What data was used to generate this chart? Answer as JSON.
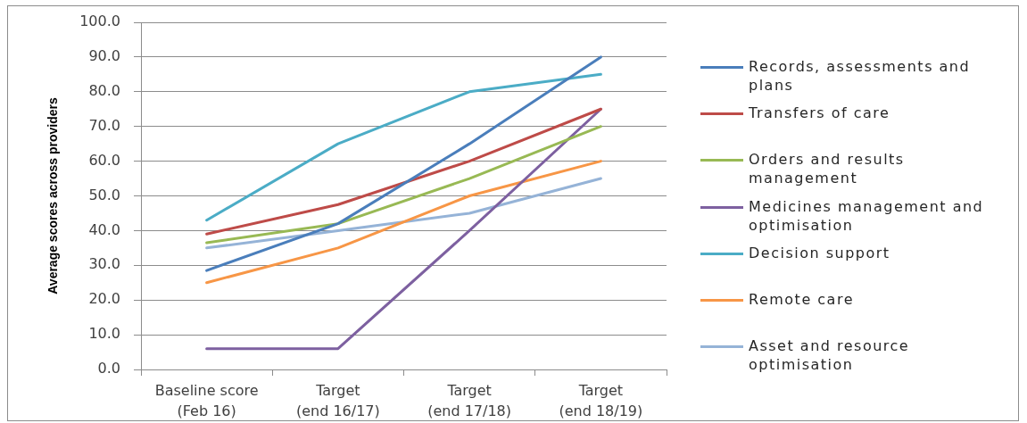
{
  "chart_data": {
    "type": "line",
    "ylabel": "Average scores across providers",
    "categories": [
      "Baseline score (Feb 16)",
      "Target (end 16/17)",
      "Target (end 17/18)",
      "Target (end 18/19)"
    ],
    "ylim": [
      0,
      100
    ],
    "yticks": [
      {
        "value": 0,
        "label": "0.0"
      },
      {
        "value": 10,
        "label": "10.0"
      },
      {
        "value": 20,
        "label": "20.0"
      },
      {
        "value": 30,
        "label": "30.0"
      },
      {
        "value": 40,
        "label": "40.0"
      },
      {
        "value": 50,
        "label": "50.0"
      },
      {
        "value": 60,
        "label": "60.0"
      },
      {
        "value": 70,
        "label": "70.0"
      },
      {
        "value": 80,
        "label": "80.0"
      },
      {
        "value": 90,
        "label": "90.0"
      },
      {
        "value": 100,
        "label": "100.0"
      }
    ],
    "grid": "y",
    "legend": "right",
    "marker": "none",
    "line_style": "solid",
    "series": [
      {
        "name": "Records, assessments and plans",
        "color": "#4a7ebb",
        "values": [
          28.5,
          42,
          65,
          90
        ]
      },
      {
        "name": "Transfers of care",
        "color": "#be4b48",
        "values": [
          39,
          47.5,
          60,
          75
        ]
      },
      {
        "name": "Orders and results management",
        "color": "#98b954",
        "values": [
          36.5,
          42,
          55,
          70
        ]
      },
      {
        "name": "Medicines management and optimisation",
        "color": "#7d60a0",
        "values": [
          6,
          6,
          40,
          75
        ]
      },
      {
        "name": "Decision support",
        "color": "#4bacc6",
        "values": [
          43,
          65,
          80,
          85
        ]
      },
      {
        "name": "Remote care",
        "color": "#f79646",
        "values": [
          25,
          35,
          50,
          60
        ]
      },
      {
        "name": "Asset and resource optimisation",
        "color": "#95b3d7",
        "values": [
          35,
          40,
          45,
          55
        ]
      }
    ]
  }
}
